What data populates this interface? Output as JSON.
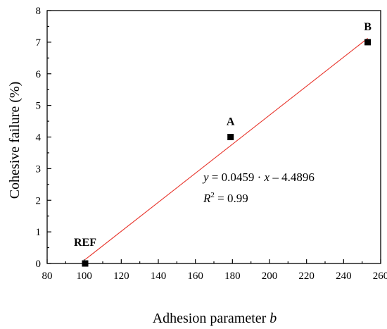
{
  "chart_data": {
    "type": "scatter",
    "title": "",
    "xlabel_text": "Adhesion parameter ",
    "xlabel_var": "b",
    "ylabel": "Cohesive failure (%)",
    "xlim": [
      80,
      260
    ],
    "ylim": [
      0,
      8
    ],
    "xticks": [
      "80",
      "100",
      "120",
      "140",
      "160",
      "180",
      "200",
      "220",
      "240",
      "260"
    ],
    "yticks": [
      "0",
      "1",
      "2",
      "3",
      "4",
      "5",
      "6",
      "7",
      "8"
    ],
    "grid": false,
    "points": [
      {
        "label": "REF",
        "x": 100.5,
        "y": 0
      },
      {
        "label": "A",
        "x": 179,
        "y": 4
      },
      {
        "label": "B",
        "x": 253,
        "y": 7
      }
    ],
    "fit": {
      "slope": 0.0459,
      "intercept": -4.4896,
      "x_range": [
        100.5,
        253
      ],
      "color": "#e8352c",
      "equation": {
        "y": "y",
        "mid": " = 0.0459 · ",
        "x": "x",
        "tail": " – 4.4896"
      },
      "r2": {
        "r": "R",
        "sup": "2",
        "tail": " = 0.99"
      }
    },
    "marker_color": "#000000"
  }
}
